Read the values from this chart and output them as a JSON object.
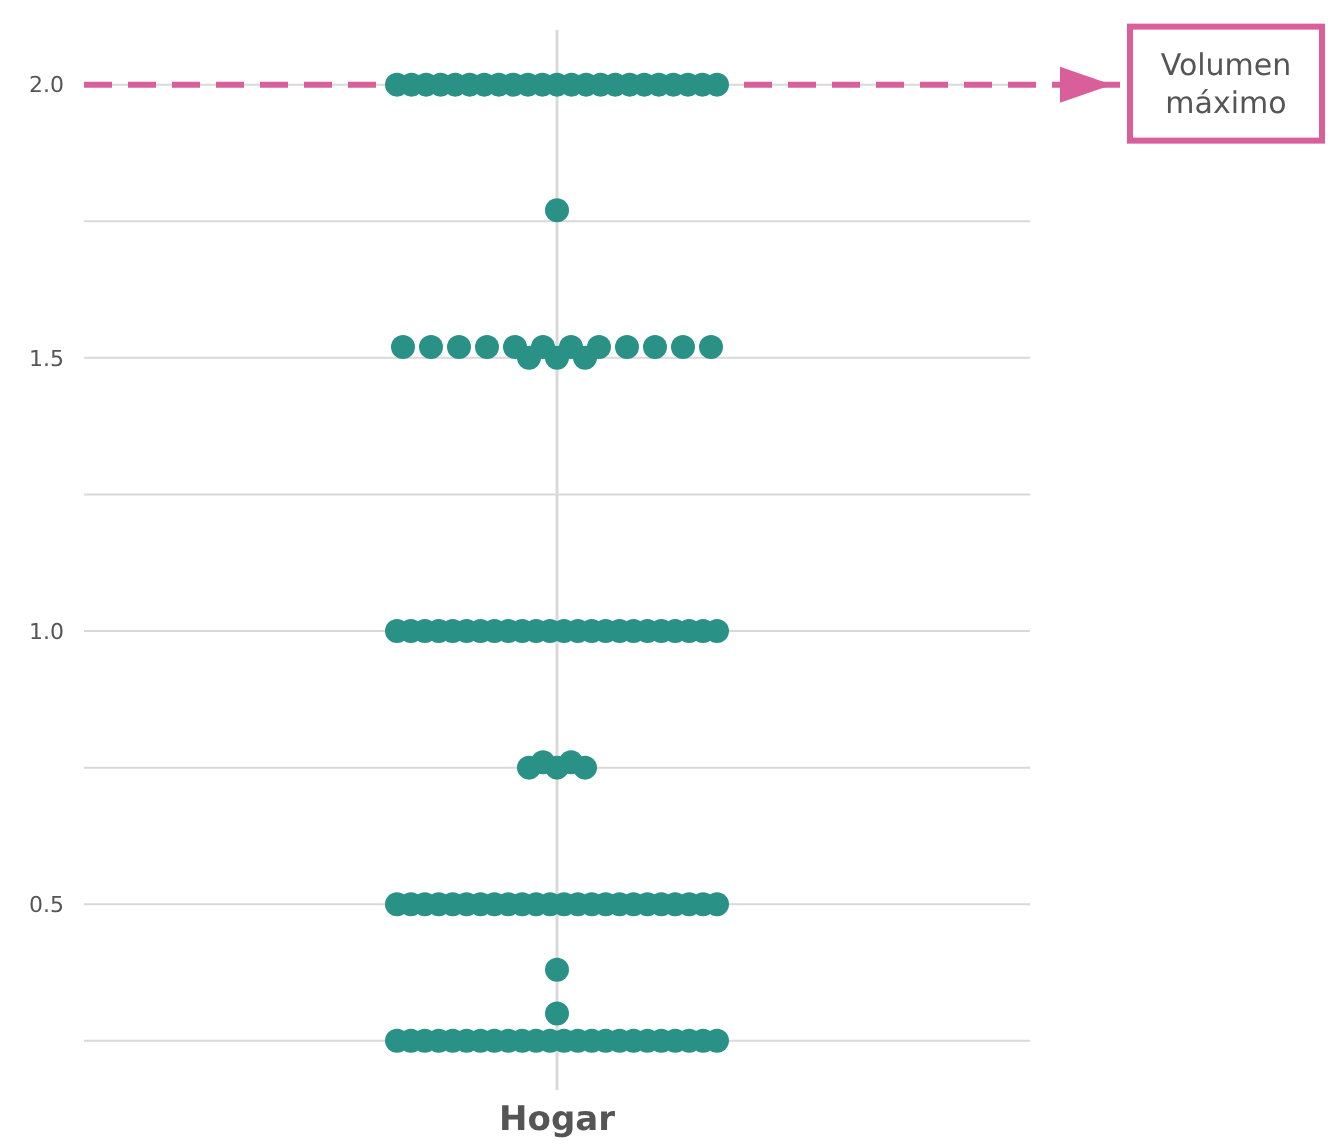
{
  "chart_data": {
    "type": "scatter",
    "categories": [
      "Hogar"
    ],
    "ylim": [
      0.16,
      2.1
    ],
    "yticks": [
      {
        "value": 0.25,
        "label": null
      },
      {
        "value": 0.5,
        "label": "0.5"
      },
      {
        "value": 0.75,
        "label": null
      },
      {
        "value": 1,
        "label": "1.0"
      },
      {
        "value": 1.25,
        "label": null
      },
      {
        "value": 1.5,
        "label": "1.5"
      },
      {
        "value": 1.75,
        "label": null
      },
      {
        "value": 2,
        "label": "2.0"
      }
    ],
    "grid": "y",
    "marker": "circle",
    "series": [
      {
        "color": "#2a9187",
        "x": [
          "Hogar",
          "Hogar",
          "Hogar",
          "Hogar",
          "Hogar",
          "Hogar",
          "Hogar",
          "Hogar",
          "Hogar",
          "Hogar",
          "Hogar",
          "Hogar",
          "Hogar",
          "Hogar",
          "Hogar",
          "Hogar",
          "Hogar",
          "Hogar",
          "Hogar",
          "Hogar",
          "Hogar",
          "Hogar",
          "Hogar",
          "Hogar",
          "Hogar",
          "Hogar",
          "Hogar",
          "Hogar",
          "Hogar",
          "Hogar",
          "Hogar",
          "Hogar",
          "Hogar",
          "Hogar",
          "Hogar",
          "Hogar",
          "Hogar",
          "Hogar",
          "Hogar",
          "Hogar",
          "Hogar",
          "Hogar",
          "Hogar",
          "Hogar",
          "Hogar",
          "Hogar",
          "Hogar",
          "Hogar",
          "Hogar",
          "Hogar",
          "Hogar",
          "Hogar",
          "Hogar",
          "Hogar",
          "Hogar",
          "Hogar",
          "Hogar",
          "Hogar",
          "Hogar",
          "Hogar",
          "Hogar",
          "Hogar",
          "Hogar",
          "Hogar",
          "Hogar",
          "Hogar",
          "Hogar",
          "Hogar",
          "Hogar",
          "Hogar",
          "Hogar",
          "Hogar",
          "Hogar",
          "Hogar",
          "Hogar",
          "Hogar",
          "Hogar",
          "Hogar",
          "Hogar",
          "Hogar",
          "Hogar",
          "Hogar",
          "Hogar",
          "Hogar",
          "Hogar",
          "Hogar",
          "Hogar",
          "Hogar",
          "Hogar",
          "Hogar",
          "Hogar",
          "Hogar",
          "Hogar",
          "Hogar",
          "Hogar",
          "Hogar",
          "Hogar",
          "Hogar",
          "Hogar",
          "Hogar",
          "Hogar",
          "Hogar",
          "Hogar",
          "Hogar",
          "Hogar",
          "Hogar",
          "Hogar",
          "Hogar",
          "Hogar",
          "Hogar",
          "Hogar",
          "Hogar",
          "Hogar",
          "Hogar",
          "Hogar",
          "Hogar",
          "Hogar",
          "Hogar"
        ],
        "values": [
          2,
          2,
          2,
          2,
          2,
          2,
          2,
          2,
          2,
          2,
          2,
          2,
          2,
          2,
          2,
          2,
          2,
          2,
          2,
          2,
          2,
          2,
          2,
          1.77,
          1.52,
          1.5,
          1.52,
          1.52,
          1.52,
          1.52,
          1.5,
          1.52,
          1.52,
          1.52,
          1.5,
          1.52,
          1.52,
          1.52,
          1.52,
          1,
          1,
          1,
          1,
          1,
          1,
          1,
          1,
          1,
          1,
          1,
          1,
          1,
          1,
          1,
          1,
          1,
          1,
          1,
          1,
          1,
          1,
          1,
          1,
          0.75,
          0.76,
          0.75,
          0.76,
          0.75,
          0.5,
          0.5,
          0.5,
          0.5,
          0.5,
          0.5,
          0.5,
          0.5,
          0.5,
          0.5,
          0.5,
          0.5,
          0.5,
          0.5,
          0.5,
          0.5,
          0.5,
          0.5,
          0.5,
          0.5,
          0.5,
          0.5,
          0.5,
          0.5,
          0.38,
          0.3,
          0.25,
          0.25,
          0.25,
          0.25,
          0.25,
          0.25,
          0.25,
          0.25,
          0.25,
          0.25,
          0.25,
          0.25,
          0.25,
          0.25,
          0.25,
          0.25,
          0.25,
          0.25,
          0.25,
          0.25,
          0.25,
          0.25,
          0.25,
          0.25
        ]
      }
    ],
    "ref_lines": [
      {
        "axis": "x",
        "value": "Hogar",
        "color": "#d9d9d9",
        "line_style": "solid"
      },
      {
        "axis": "y",
        "value": 2,
        "label": "Volumen máximo",
        "color": "#d95f9a",
        "line_style": "dashed"
      }
    ]
  }
}
